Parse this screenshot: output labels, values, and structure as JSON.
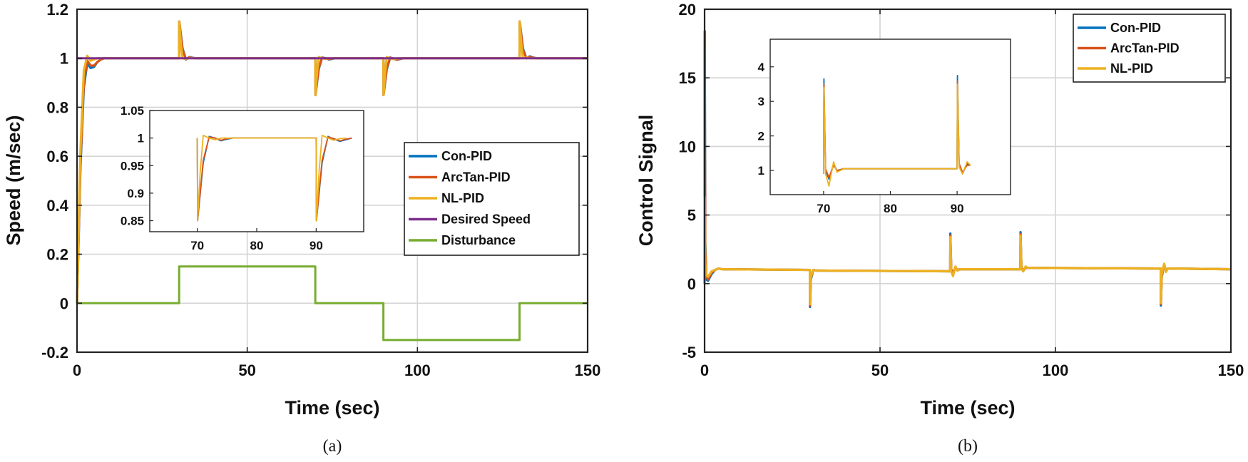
{
  "colors": {
    "con_pid": "#0072BD",
    "arctan_pid": "#D95319",
    "nl_pid": "#EDB120",
    "desired": "#7E2F8E",
    "disturbance": "#77AC30"
  },
  "chart_data": [
    {
      "id": "a",
      "type": "line",
      "caption": "(a)",
      "xlabel": "Time (sec)",
      "ylabel": "Speed (m/sec)",
      "xlim": [
        0,
        150
      ],
      "ylim": [
        -0.2,
        1.2
      ],
      "xticks": [
        0,
        50,
        100,
        150
      ],
      "yticks": [
        -0.2,
        0,
        0.2,
        0.4,
        0.6,
        0.8,
        1,
        1.2
      ],
      "xtick_labels": [
        "0",
        "50",
        "100",
        "150"
      ],
      "ytick_labels": [
        "-0.2",
        "0",
        "0.2",
        "0.4",
        "0.6",
        "0.8",
        "1",
        "1.2"
      ],
      "grid": true,
      "legend": {
        "placement": "center-right",
        "entries": [
          "Con-PID",
          "ArcTan-PID",
          "NL-PID",
          "Desired Speed",
          "Disturbance"
        ]
      },
      "series": [
        {
          "name": "Con-PID",
          "color_key": "con_pid",
          "x": [
            0,
            1,
            2,
            3,
            4,
            5,
            6,
            7,
            8,
            10,
            30,
            30.05,
            31,
            32,
            33,
            34,
            35,
            70,
            70.05,
            71,
            72,
            73,
            74,
            75,
            76,
            90,
            90.05,
            91,
            92,
            93,
            94,
            95,
            96,
            130,
            130.05,
            131,
            132,
            133,
            134,
            135,
            150
          ],
          "y": [
            0,
            0.55,
            0.88,
            0.98,
            0.96,
            0.965,
            0.985,
            0.995,
            1.0,
            1.0,
            1.0,
            1.15,
            1.04,
            0.995,
            1.005,
            1.002,
            1.0,
            1.0,
            0.85,
            0.955,
            1.003,
            1.0,
            0.995,
            0.998,
            1.0,
            1.0,
            0.85,
            0.955,
            1.003,
            0.998,
            0.994,
            0.997,
            1.0,
            1.0,
            1.15,
            1.04,
            1.0,
            1.008,
            1.003,
            1.0,
            1.0
          ]
        },
        {
          "name": "ArcTan-PID",
          "color_key": "arctan_pid",
          "x": [
            0,
            1,
            2,
            3,
            4,
            5,
            6,
            7,
            8,
            10,
            30,
            30.05,
            31,
            32,
            33,
            34,
            35,
            70,
            70.05,
            71,
            72,
            73,
            74,
            75,
            76,
            90,
            90.05,
            91,
            92,
            93,
            94,
            95,
            96,
            130,
            130.05,
            131,
            132,
            133,
            134,
            135,
            150
          ],
          "y": [
            0,
            0.57,
            0.9,
            0.99,
            0.97,
            0.97,
            0.985,
            0.995,
            1.0,
            1.0,
            1.0,
            1.15,
            1.035,
            0.996,
            1.004,
            1.001,
            1.0,
            1.0,
            0.85,
            0.96,
            1.002,
            1.0,
            0.996,
            0.999,
            1.0,
            1.0,
            0.85,
            0.96,
            1.002,
            0.999,
            0.995,
            0.998,
            1.0,
            1.0,
            1.15,
            1.035,
            1.0,
            1.006,
            1.002,
            1.0,
            1.0
          ]
        },
        {
          "name": "NL-PID",
          "color_key": "nl_pid",
          "x": [
            0,
            1,
            2,
            3,
            4,
            5,
            6,
            7,
            10,
            30,
            30.05,
            30.5,
            31,
            32,
            33,
            35,
            70,
            70.05,
            70.5,
            71,
            72,
            73,
            74,
            75,
            90,
            90.05,
            90.5,
            91,
            92,
            93,
            94,
            95,
            130,
            130.05,
            130.5,
            131,
            132,
            133,
            135,
            150
          ],
          "y": [
            0,
            0.62,
            0.95,
            1.01,
            0.99,
            0.995,
            1.0,
            1.0,
            1.0,
            1.0,
            1.15,
            1.06,
            1.0,
            0.997,
            1.001,
            1.0,
            1.0,
            0.85,
            0.94,
            1.005,
            1.0,
            0.997,
            1.0,
            1.0,
            1.0,
            0.85,
            0.94,
            1.005,
            1.0,
            0.996,
            0.999,
            1.0,
            1.0,
            1.15,
            1.06,
            1.0,
            1.003,
            1.0,
            1.0,
            1.0
          ]
        },
        {
          "name": "Desired Speed",
          "color_key": "desired",
          "x": [
            0,
            150
          ],
          "y": [
            1,
            1
          ]
        },
        {
          "name": "Disturbance",
          "color_key": "disturbance",
          "x": [
            0,
            30,
            30,
            70,
            70,
            90,
            90,
            130,
            130,
            150
          ],
          "y": [
            0,
            0,
            0.15,
            0.15,
            0,
            0,
            -0.15,
            -0.15,
            0,
            0
          ]
        }
      ],
      "inset": {
        "xlim": [
          62,
          98
        ],
        "ylim": [
          0.83,
          1.05
        ],
        "xticks": [
          70,
          80,
          90
        ],
        "xtick_labels": [
          "70",
          "80",
          "90"
        ],
        "yticks": [
          0.85,
          0.9,
          0.95,
          1,
          1.05
        ],
        "ytick_labels": [
          "0.85",
          "0.9",
          "0.95",
          "1",
          "1.05"
        ],
        "grid": false
      }
    },
    {
      "id": "b",
      "type": "line",
      "caption": "(b)",
      "xlabel": "Time (sec)",
      "ylabel": "Control Signal",
      "xlim": [
        0,
        150
      ],
      "ylim": [
        -5,
        20
      ],
      "xticks": [
        0,
        50,
        100,
        150
      ],
      "yticks": [
        -5,
        0,
        5,
        10,
        15,
        20
      ],
      "xtick_labels": [
        "0",
        "50",
        "100",
        "150"
      ],
      "ytick_labels": [
        "-5",
        "0",
        "5",
        "10",
        "15",
        "20"
      ],
      "grid": true,
      "legend": {
        "placement": "top-right",
        "entries": [
          "Con-PID",
          "ArcTan-PID",
          "NL-PID"
        ]
      },
      "series": [
        {
          "name": "Con-PID",
          "color_key": "con_pid",
          "x": [
            0,
            0.05,
            0.2,
            0.5,
            1,
            2,
            3,
            4,
            5,
            30,
            30.05,
            30.3,
            31,
            32,
            70,
            70.05,
            70.3,
            70.8,
            71.5,
            72,
            73,
            90,
            90.05,
            90.3,
            90.8,
            91.5,
            92,
            130,
            130.05,
            130.3,
            131,
            131.5,
            132,
            150
          ],
          "y": [
            0,
            18.4,
            3,
            0.3,
            0.2,
            0.7,
            1.0,
            1.1,
            1.05,
            1.0,
            -1.7,
            0.3,
            1.0,
            0.95,
            0.9,
            3.65,
            1.0,
            0.75,
            1.2,
            1.0,
            1.05,
            1.05,
            3.75,
            1.2,
            0.9,
            1.2,
            1.15,
            1.1,
            -1.6,
            0.5,
            1.4,
            0.9,
            1.1,
            1.05
          ]
        },
        {
          "name": "ArcTan-PID",
          "color_key": "arctan_pid",
          "x": [
            0,
            0.05,
            0.2,
            0.5,
            1,
            2,
            3,
            4,
            5,
            30,
            30.05,
            30.3,
            31,
            32,
            70,
            70.05,
            70.3,
            70.8,
            71.5,
            72,
            73,
            90,
            90.05,
            90.3,
            90.8,
            91.5,
            92,
            130,
            130.05,
            130.3,
            131,
            131.5,
            132,
            150
          ],
          "y": [
            0,
            17.2,
            2.5,
            0.5,
            0.3,
            0.8,
            1.0,
            1.1,
            1.05,
            1.0,
            -1.6,
            0.4,
            1.0,
            0.95,
            0.9,
            3.5,
            1.05,
            0.8,
            1.15,
            1.0,
            1.05,
            1.05,
            3.6,
            1.2,
            0.95,
            1.15,
            1.15,
            1.1,
            -1.5,
            0.6,
            1.35,
            0.95,
            1.1,
            1.05
          ]
        },
        {
          "name": "NL-PID",
          "color_key": "nl_pid",
          "x": [
            0,
            0.05,
            0.2,
            0.5,
            1,
            2,
            3,
            4,
            5,
            30,
            30.05,
            30.3,
            31,
            32,
            70,
            70.05,
            70.3,
            70.8,
            71.5,
            72,
            73,
            90,
            90.05,
            90.3,
            90.8,
            91.5,
            92,
            130,
            130.05,
            130.3,
            131,
            131.5,
            132,
            150
          ],
          "y": [
            0,
            6.3,
            1.5,
            0.6,
            0.5,
            0.9,
            1.0,
            1.1,
            1.05,
            1.0,
            -1.5,
            0.5,
            1.0,
            0.95,
            0.9,
            3.4,
            0.9,
            0.55,
            1.25,
            0.95,
            1.05,
            1.05,
            3.5,
            1.1,
            0.9,
            1.25,
            1.15,
            1.1,
            -1.4,
            0.7,
            1.45,
            0.85,
            1.1,
            1.05
          ]
        }
      ],
      "inset": {
        "xlim": [
          62,
          98
        ],
        "ylim": [
          0.3,
          4.8
        ],
        "xticks": [
          70,
          80,
          90
        ],
        "xtick_labels": [
          "70",
          "80",
          "90"
        ],
        "yticks": [
          1,
          2,
          3,
          4
        ],
        "ytick_labels": [
          "1",
          "2",
          "3",
          "4"
        ],
        "grid": false
      }
    }
  ]
}
